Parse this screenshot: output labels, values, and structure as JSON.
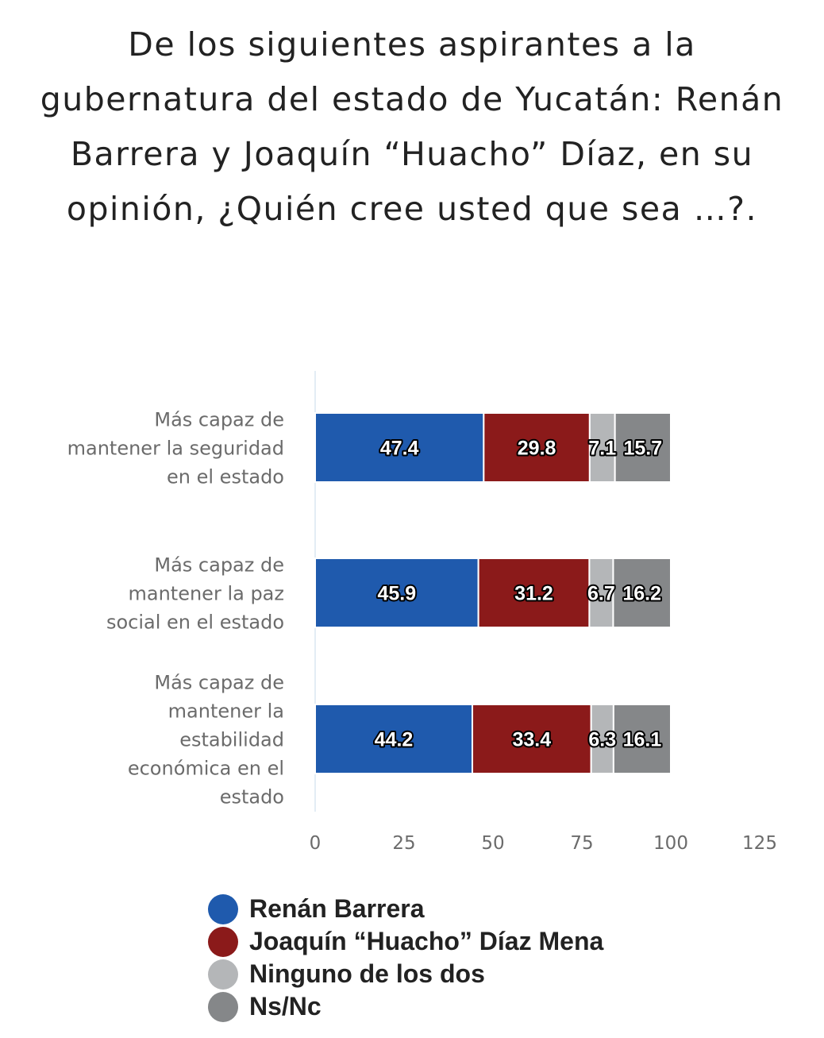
{
  "title": {
    "lines": [
      "De los siguientes aspirantes a la",
      "gubernatura del estado de Yucatán: Renán",
      "Barrera y Joaquín “Huacho” Díaz, en su",
      "opinión, ¿Quién cree usted que sea …?."
    ]
  },
  "chart_data": {
    "type": "bar",
    "orientation": "horizontal",
    "stacked": true,
    "categories": [
      [
        "Más capaz de",
        "mantener la seguridad",
        "en el estado"
      ],
      [
        "Más capaz de",
        "mantener la paz",
        "social en el estado"
      ],
      [
        "Más capaz de",
        "mantener la",
        "estabilidad",
        "económica en el",
        "estado"
      ]
    ],
    "series": [
      {
        "name": "Renán Barrera",
        "color": "#1f5aad",
        "values": [
          47.4,
          45.9,
          44.2
        ]
      },
      {
        "name": "Joaquín “Huacho” Díaz Mena",
        "color": "#8b1a1a",
        "values": [
          29.8,
          31.2,
          33.4
        ]
      },
      {
        "name": "Ninguno de los dos",
        "color": "#b4b6b8",
        "values": [
          7.1,
          6.7,
          6.3
        ]
      },
      {
        "name": "Ns/Nc",
        "color": "#858789",
        "values": [
          15.7,
          16.2,
          16.1
        ]
      }
    ],
    "xlim": [
      0,
      125
    ],
    "xticks": [
      0,
      25,
      50,
      75,
      100,
      125
    ],
    "xlabel": "",
    "ylabel": "",
    "grid": false,
    "legend_position": "bottom"
  }
}
